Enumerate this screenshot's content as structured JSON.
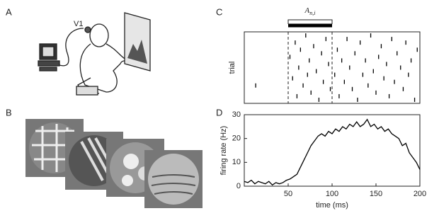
{
  "panels": {
    "A": {
      "label": "A",
      "region": "V1"
    },
    "B": {
      "label": "B"
    }
  },
  "chart_data": [
    {
      "type": "raster",
      "label": "C",
      "ylabel": "trial",
      "annotation": "A",
      "annotation_subscript": "n,i",
      "xlim": [
        0,
        200
      ],
      "ylim": [
        0,
        20
      ],
      "vlines": [
        50,
        100
      ],
      "color": "#000000",
      "x": [
        13,
        52,
        55,
        58,
        60,
        62,
        64,
        67,
        70,
        72,
        74,
        76,
        79,
        82,
        85,
        88,
        90,
        93,
        96,
        98,
        103,
        106,
        108,
        111,
        114,
        117,
        120,
        123,
        126,
        129,
        132,
        135,
        138,
        141,
        144,
        147,
        150,
        153,
        156,
        159,
        162,
        165,
        168,
        171,
        174,
        178,
        181,
        184,
        187,
        190,
        194,
        197
      ],
      "y": [
        15,
        7,
        13,
        3,
        18,
        10,
        5,
        15,
        1,
        12,
        8,
        17,
        4,
        11,
        19,
        6,
        14,
        2,
        9,
        16,
        12,
        5,
        18,
        8,
        14,
        2,
        10,
        16,
        6,
        19,
        3,
        12,
        8,
        15,
        1,
        11,
        17,
        7,
        4,
        13,
        9,
        18,
        2,
        14,
        6,
        10,
        16,
        3,
        12,
        8,
        19,
        5
      ]
    },
    {
      "type": "line",
      "label": "D",
      "xlabel": "time (ms)",
      "ylabel": "firing rate (Hz)",
      "xlim": [
        0,
        200
      ],
      "ylim": [
        0,
        30
      ],
      "xticks": [
        50,
        100,
        150,
        200
      ],
      "yticks": [
        0,
        10,
        20,
        30
      ],
      "x": [
        0,
        4,
        8,
        12,
        16,
        20,
        24,
        28,
        32,
        36,
        40,
        44,
        48,
        52,
        56,
        60,
        64,
        68,
        72,
        76,
        80,
        84,
        88,
        92,
        96,
        100,
        104,
        108,
        112,
        116,
        120,
        124,
        128,
        132,
        136,
        140,
        144,
        148,
        152,
        156,
        160,
        164,
        168,
        172,
        176,
        180,
        184,
        188,
        192,
        196,
        200
      ],
      "series": [
        {
          "color": "#000000",
          "values": [
            2,
            1.5,
            2.5,
            1,
            2,
            1.5,
            1,
            2,
            0.5,
            1.5,
            1,
            1.5,
            2.5,
            3,
            4,
            5,
            8,
            11,
            14,
            17,
            19,
            21,
            22,
            21,
            23,
            22,
            24,
            23,
            25,
            24,
            26,
            25,
            27,
            25,
            26,
            28,
            25,
            26,
            24,
            25,
            23,
            24,
            22,
            21,
            20,
            17,
            18,
            14,
            12,
            10,
            7
          ]
        }
      ]
    }
  ]
}
